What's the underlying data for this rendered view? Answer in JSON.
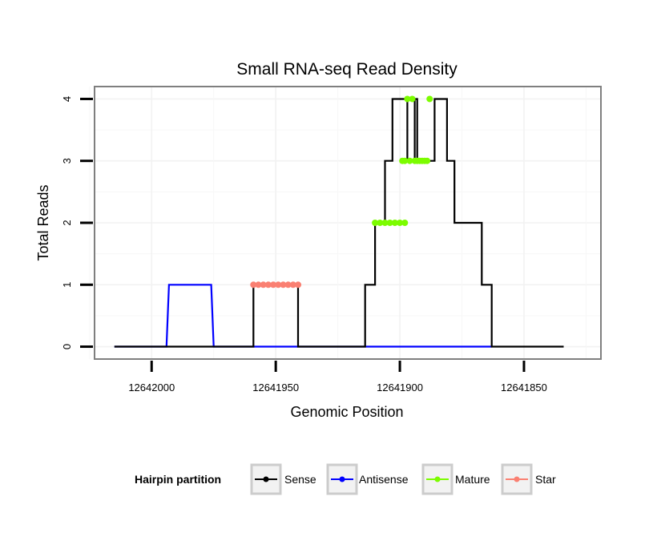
{
  "chart_data": {
    "type": "line",
    "title": "Small RNA-seq Read Density",
    "xlabel": "Genomic Position",
    "ylabel": "Total Reads",
    "x_reversed": true,
    "xlim": [
      12642023,
      12641819
    ],
    "ylim": [
      -0.2,
      4.2
    ],
    "xticks": [
      12642000,
      12641950,
      12641900,
      12641850
    ],
    "xtick_labels": [
      "12642000",
      "12641950",
      "12641900",
      "12641850"
    ],
    "yticks": [
      0,
      1,
      2,
      3,
      4
    ],
    "ytick_labels": [
      "0",
      "1",
      "2",
      "3",
      "4"
    ],
    "grid": true,
    "legend": {
      "title": "Hairpin partition",
      "position": "bottom",
      "entries": [
        {
          "label": "Sense",
          "color": "#000000"
        },
        {
          "label": "Antisense",
          "color": "#0000ff"
        },
        {
          "label": "Mature",
          "color": "#7cfc00"
        },
        {
          "label": "Star",
          "color": "#fa8072"
        }
      ]
    },
    "series": [
      {
        "name": "Sense",
        "color": "#000000",
        "style": "line",
        "x": [
          12642015,
          12641959,
          12641959,
          12641941,
          12641941,
          12641914,
          12641914,
          12641910,
          12641910,
          12641906,
          12641906,
          12641903,
          12641903,
          12641897,
          12641897,
          12641896,
          12641896,
          12641894,
          12641894,
          12641893,
          12641893,
          12641891,
          12641891,
          12641886,
          12641886,
          12641881,
          12641881,
          12641880,
          12641880,
          12641878,
          12641878,
          12641876,
          12641876,
          12641867,
          12641867,
          12641863,
          12641863,
          12641834
        ],
        "y": [
          0,
          0,
          1,
          1,
          0,
          0,
          1,
          1,
          2,
          2,
          3,
          3,
          4,
          4,
          3,
          3,
          3,
          3,
          4,
          4,
          3,
          3,
          3,
          3,
          4,
          4,
          3,
          3,
          3,
          3,
          2,
          2,
          2,
          2,
          1,
          1,
          0,
          0
        ]
      },
      {
        "name": "Antisense",
        "color": "#0000ff",
        "style": "line",
        "x": [
          12642015,
          12641994,
          12641993,
          12641976,
          12641975,
          12641959,
          12641941,
          12641863
        ],
        "y": [
          0,
          0,
          1,
          1,
          0,
          0,
          0,
          0
        ]
      },
      {
        "name": "Mature",
        "color": "#7cfc00",
        "style": "points",
        "x": [
          12641910,
          12641908,
          12641906,
          12641904,
          12641902,
          12641900,
          12641898,
          12641899,
          12641898,
          12641896,
          12641897,
          12641895,
          12641894,
          12641893,
          12641892,
          12641891,
          12641890,
          12641889,
          12641888
        ],
        "y": [
          2,
          2,
          2,
          2,
          2,
          2,
          2,
          3,
          3,
          3,
          4,
          4,
          3,
          3,
          3,
          3,
          3,
          3,
          4
        ]
      },
      {
        "name": "Star",
        "color": "#fa8072",
        "style": "points",
        "x": [
          12641959,
          12641957,
          12641955,
          12641953,
          12641951,
          12641949,
          12641947,
          12641945,
          12641943,
          12641941
        ],
        "y": [
          1,
          1,
          1,
          1,
          1,
          1,
          1,
          1,
          1,
          1
        ]
      }
    ]
  }
}
